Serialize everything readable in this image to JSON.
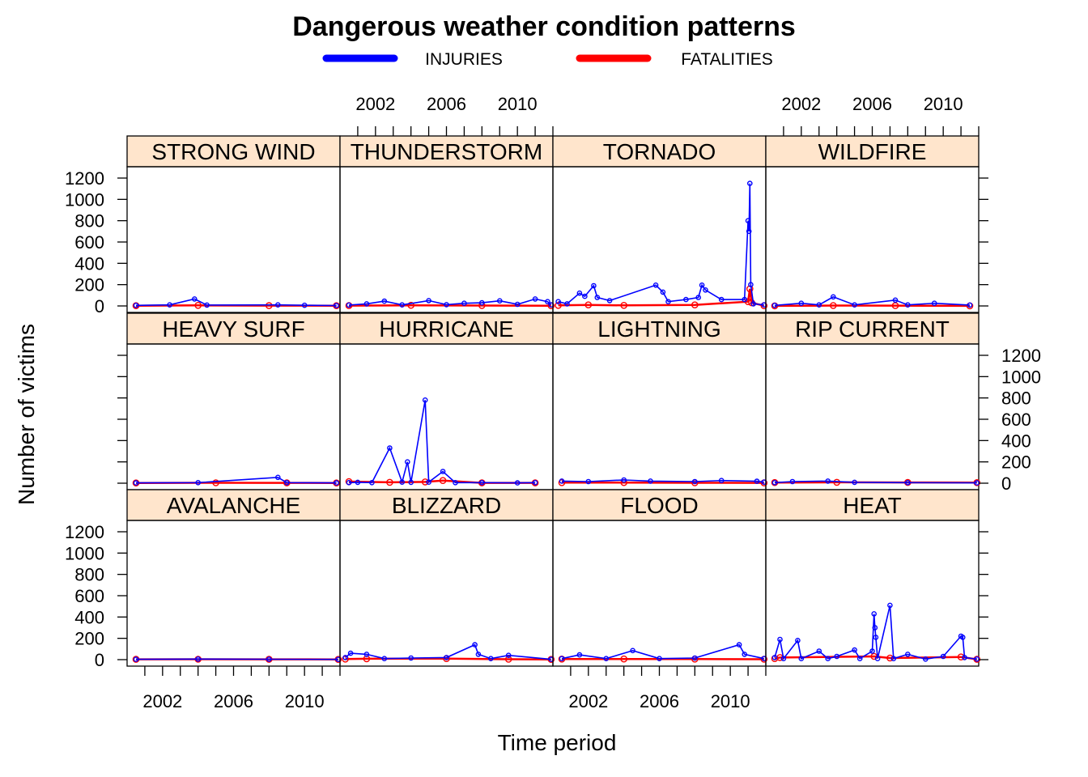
{
  "chart_data": {
    "type": "line",
    "title": "Dangerous weather condition patterns",
    "xlabel": "Time period",
    "ylabel": "Number of victims",
    "legend": {
      "placement": "top",
      "entries": [
        {
          "name": "INJURIES",
          "color": "#0000ff"
        },
        {
          "name": "FATALITIES",
          "color": "#ff0000"
        }
      ]
    },
    "xlim": [
      2000,
      2012
    ],
    "ylim": [
      0,
      1200
    ],
    "x_ticks": [
      "2002",
      "2006",
      "2010"
    ],
    "x_minor_ticks": [
      2001,
      2002,
      2003,
      2004,
      2005,
      2006,
      2007,
      2008,
      2009,
      2010,
      2011,
      2012
    ],
    "y_ticks": [
      "0",
      "200",
      "400",
      "600",
      "800",
      "1000",
      "1200"
    ],
    "colors": {
      "injuries": "#0000ff",
      "fatalities": "#ff0000",
      "strip": "#ffe5cc"
    },
    "panels": [
      {
        "name": "STRONG WIND",
        "row": 0,
        "col": 0,
        "injuries": [
          [
            2000.5,
            5
          ],
          [
            2002.4,
            10
          ],
          [
            2003.8,
            65
          ],
          [
            2004.5,
            8
          ],
          [
            2008.5,
            10
          ],
          [
            2010.0,
            6
          ],
          [
            2011.8,
            4
          ]
        ],
        "fatalities": [
          [
            2000.5,
            2
          ],
          [
            2004.0,
            5
          ],
          [
            2008.0,
            3
          ],
          [
            2011.8,
            2
          ]
        ]
      },
      {
        "name": "THUNDERSTORM",
        "row": 0,
        "col": 1,
        "injuries": [
          [
            2000.5,
            8
          ],
          [
            2001.5,
            20
          ],
          [
            2002.5,
            45
          ],
          [
            2003.5,
            10
          ],
          [
            2005.0,
            50
          ],
          [
            2006.0,
            12
          ],
          [
            2007.0,
            25
          ],
          [
            2008.0,
            30
          ],
          [
            2009.0,
            48
          ],
          [
            2010.0,
            15
          ],
          [
            2011.0,
            65
          ],
          [
            2011.7,
            40
          ],
          [
            2011.9,
            10
          ]
        ],
        "fatalities": [
          [
            2000.5,
            3
          ],
          [
            2004.0,
            6
          ],
          [
            2008.0,
            4
          ],
          [
            2011.9,
            2
          ]
        ]
      },
      {
        "name": "TORNADO",
        "row": 0,
        "col": 2,
        "injuries": [
          [
            2000.3,
            40
          ],
          [
            2000.8,
            20
          ],
          [
            2001.5,
            120
          ],
          [
            2001.8,
            90
          ],
          [
            2002.3,
            190
          ],
          [
            2002.5,
            80
          ],
          [
            2003.2,
            50
          ],
          [
            2005.8,
            195
          ],
          [
            2006.2,
            130
          ],
          [
            2006.5,
            40
          ],
          [
            2007.5,
            60
          ],
          [
            2008.2,
            80
          ],
          [
            2008.4,
            195
          ],
          [
            2008.6,
            150
          ],
          [
            2009.5,
            60
          ],
          [
            2010.8,
            60
          ],
          [
            2011.0,
            800
          ],
          [
            2011.05,
            700
          ],
          [
            2011.1,
            1150
          ],
          [
            2011.15,
            200
          ],
          [
            2011.3,
            20
          ],
          [
            2011.9,
            10
          ]
        ],
        "fatalities": [
          [
            2000.3,
            5
          ],
          [
            2002.0,
            10
          ],
          [
            2004.0,
            5
          ],
          [
            2008.0,
            10
          ],
          [
            2011.0,
            40
          ],
          [
            2011.1,
            160
          ],
          [
            2011.2,
            30
          ],
          [
            2011.9,
            2
          ]
        ]
      },
      {
        "name": "WILDFIRE",
        "row": 0,
        "col": 3,
        "injuries": [
          [
            2000.5,
            5
          ],
          [
            2002.0,
            25
          ],
          [
            2003.0,
            10
          ],
          [
            2003.8,
            85
          ],
          [
            2005.0,
            10
          ],
          [
            2007.3,
            55
          ],
          [
            2008.0,
            10
          ],
          [
            2009.5,
            25
          ],
          [
            2011.5,
            8
          ]
        ],
        "fatalities": [
          [
            2000.5,
            1
          ],
          [
            2003.8,
            4
          ],
          [
            2007.3,
            3
          ],
          [
            2011.5,
            1
          ]
        ]
      },
      {
        "name": "HEAVY SURF",
        "row": 1,
        "col": 0,
        "injuries": [
          [
            2000.5,
            3
          ],
          [
            2004.0,
            5
          ],
          [
            2008.5,
            55
          ],
          [
            2009.0,
            5
          ],
          [
            2011.8,
            3
          ]
        ],
        "fatalities": [
          [
            2000.5,
            2
          ],
          [
            2005.0,
            4
          ],
          [
            2009.0,
            3
          ],
          [
            2011.8,
            2
          ]
        ]
      },
      {
        "name": "HURRICANE",
        "row": 1,
        "col": 1,
        "injuries": [
          [
            2000.5,
            5
          ],
          [
            2001.0,
            8
          ],
          [
            2001.8,
            5
          ],
          [
            2002.8,
            330
          ],
          [
            2003.5,
            10
          ],
          [
            2003.8,
            200
          ],
          [
            2004.0,
            8
          ],
          [
            2004.8,
            780
          ],
          [
            2005.0,
            10
          ],
          [
            2005.8,
            110
          ],
          [
            2006.5,
            5
          ],
          [
            2008.0,
            5
          ],
          [
            2010.0,
            3
          ],
          [
            2011.0,
            5
          ]
        ],
        "fatalities": [
          [
            2000.5,
            15
          ],
          [
            2002.8,
            8
          ],
          [
            2004.8,
            12
          ],
          [
            2005.8,
            25
          ],
          [
            2008.0,
            3
          ],
          [
            2011.0,
            3
          ]
        ]
      },
      {
        "name": "LIGHTNING",
        "row": 1,
        "col": 2,
        "injuries": [
          [
            2000.5,
            20
          ],
          [
            2002.0,
            15
          ],
          [
            2004.0,
            30
          ],
          [
            2005.5,
            20
          ],
          [
            2008.0,
            15
          ],
          [
            2009.5,
            25
          ],
          [
            2011.5,
            18
          ],
          [
            2011.9,
            10
          ]
        ],
        "fatalities": [
          [
            2000.5,
            5
          ],
          [
            2004.0,
            6
          ],
          [
            2008.0,
            4
          ],
          [
            2011.9,
            3
          ]
        ]
      },
      {
        "name": "RIP CURRENT",
        "row": 1,
        "col": 3,
        "injuries": [
          [
            2000.5,
            5
          ],
          [
            2001.5,
            15
          ],
          [
            2003.5,
            20
          ],
          [
            2005.0,
            8
          ],
          [
            2008.0,
            5
          ],
          [
            2011.9,
            3
          ]
        ],
        "fatalities": [
          [
            2000.5,
            6
          ],
          [
            2004.0,
            8
          ],
          [
            2008.0,
            7
          ],
          [
            2011.9,
            5
          ]
        ]
      },
      {
        "name": "AVALANCHE",
        "row": 2,
        "col": 0,
        "injuries": [
          [
            2000.5,
            3
          ],
          [
            2004.0,
            5
          ],
          [
            2008.0,
            4
          ],
          [
            2011.9,
            2
          ]
        ],
        "fatalities": [
          [
            2000.5,
            3
          ],
          [
            2004.0,
            4
          ],
          [
            2008.0,
            3
          ],
          [
            2011.9,
            2
          ]
        ]
      },
      {
        "name": "BLIZZARD",
        "row": 2,
        "col": 1,
        "injuries": [
          [
            2000.3,
            20
          ],
          [
            2000.6,
            60
          ],
          [
            2001.5,
            50
          ],
          [
            2002.5,
            10
          ],
          [
            2004.0,
            15
          ],
          [
            2006.0,
            20
          ],
          [
            2007.6,
            140
          ],
          [
            2007.8,
            50
          ],
          [
            2008.5,
            10
          ],
          [
            2009.5,
            40
          ],
          [
            2011.9,
            3
          ]
        ],
        "fatalities": [
          [
            2000.3,
            5
          ],
          [
            2001.5,
            8
          ],
          [
            2006.0,
            10
          ],
          [
            2009.5,
            4
          ],
          [
            2011.9,
            2
          ]
        ]
      },
      {
        "name": "FLOOD",
        "row": 2,
        "col": 2,
        "injuries": [
          [
            2000.5,
            10
          ],
          [
            2001.5,
            45
          ],
          [
            2003.0,
            10
          ],
          [
            2004.5,
            85
          ],
          [
            2006.0,
            10
          ],
          [
            2008.0,
            15
          ],
          [
            2010.5,
            140
          ],
          [
            2010.8,
            50
          ],
          [
            2011.9,
            10
          ]
        ],
        "fatalities": [
          [
            2000.5,
            5
          ],
          [
            2004.0,
            6
          ],
          [
            2008.0,
            5
          ],
          [
            2011.9,
            4
          ]
        ]
      },
      {
        "name": "HEAT",
        "row": 2,
        "col": 3,
        "injuries": [
          [
            2000.5,
            20
          ],
          [
            2000.8,
            190
          ],
          [
            2001.0,
            10
          ],
          [
            2001.8,
            180
          ],
          [
            2002.0,
            10
          ],
          [
            2003.0,
            80
          ],
          [
            2003.5,
            10
          ],
          [
            2004.0,
            30
          ],
          [
            2005.0,
            90
          ],
          [
            2005.3,
            10
          ],
          [
            2006.0,
            80
          ],
          [
            2006.1,
            430
          ],
          [
            2006.15,
            300
          ],
          [
            2006.2,
            210
          ],
          [
            2006.3,
            10
          ],
          [
            2007.0,
            510
          ],
          [
            2007.2,
            10
          ],
          [
            2008.0,
            50
          ],
          [
            2009.0,
            5
          ],
          [
            2010.0,
            30
          ],
          [
            2011.0,
            220
          ],
          [
            2011.1,
            210
          ],
          [
            2011.2,
            20
          ],
          [
            2011.9,
            5
          ]
        ],
        "fatalities": [
          [
            2000.5,
            10
          ],
          [
            2000.8,
            20
          ],
          [
            2006.1,
            30
          ],
          [
            2007.0,
            15
          ],
          [
            2011.0,
            25
          ],
          [
            2011.9,
            3
          ]
        ]
      }
    ]
  }
}
